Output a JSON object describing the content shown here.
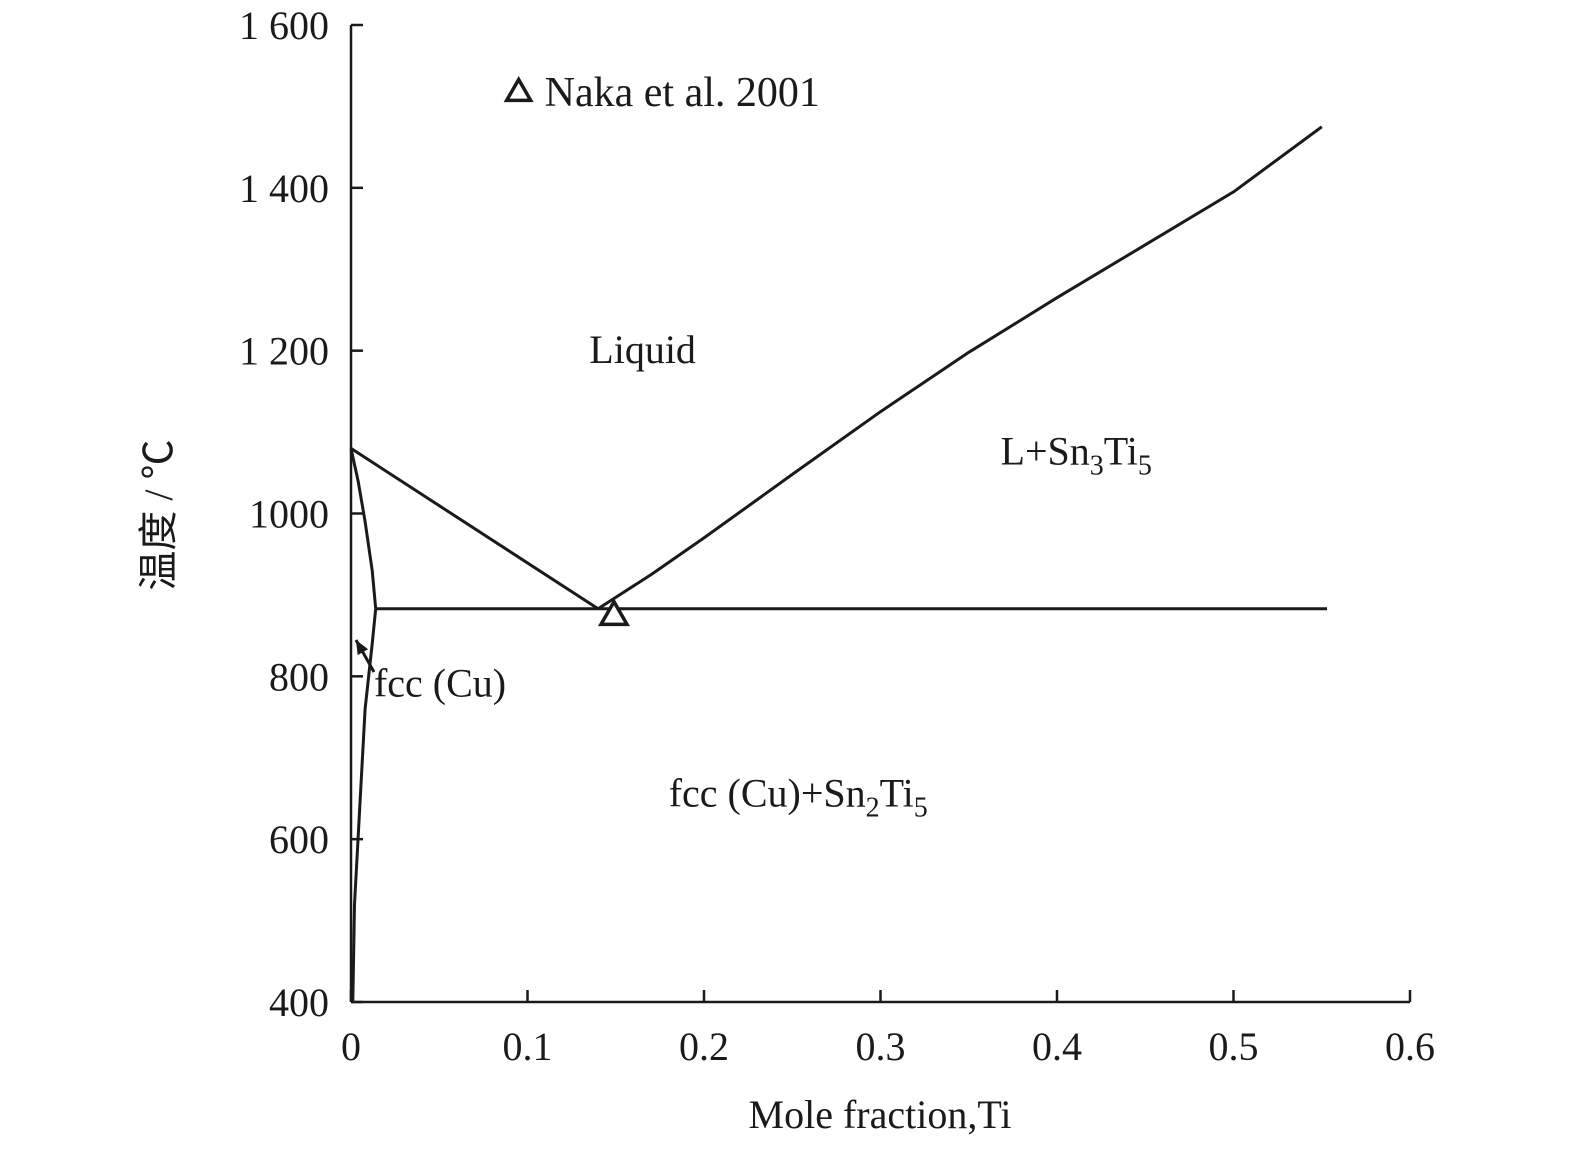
{
  "chart_data": {
    "type": "line",
    "xlabel": "Mole fraction,Ti",
    "ylabel": "温度 / ℃",
    "xlim": [
      0,
      0.6
    ],
    "ylim": [
      400,
      1600
    ],
    "x_ticks": [
      {
        "value": 0,
        "label": "0"
      },
      {
        "value": 0.1,
        "label": "0.1"
      },
      {
        "value": 0.2,
        "label": "0.2"
      },
      {
        "value": 0.3,
        "label": "0.3"
      },
      {
        "value": 0.4,
        "label": "0.4"
      },
      {
        "value": 0.5,
        "label": "0.5"
      },
      {
        "value": 0.6,
        "label": "0.6"
      }
    ],
    "y_ticks": [
      {
        "value": 400,
        "label": "400"
      },
      {
        "value": 600,
        "label": "600"
      },
      {
        "value": 800,
        "label": "800"
      },
      {
        "value": 1000,
        "label": "1000"
      },
      {
        "value": 1200,
        "label": "1 200"
      },
      {
        "value": 1400,
        "label": "1 400"
      },
      {
        "value": 1600,
        "label": "1 600"
      }
    ],
    "grid": false,
    "lines": [
      {
        "points": [
          [
            0,
            1080
          ],
          [
            0.14,
            883
          ]
        ]
      },
      {
        "points": [
          [
            0.14,
            883
          ],
          [
            0.17,
            925
          ],
          [
            0.2,
            970
          ],
          [
            0.25,
            1048
          ],
          [
            0.3,
            1125
          ],
          [
            0.35,
            1198
          ],
          [
            0.4,
            1265
          ],
          [
            0.45,
            1330
          ],
          [
            0.5,
            1395
          ],
          [
            0.55,
            1475
          ]
        ]
      },
      {
        "points": [
          [
            0.014,
            883
          ],
          [
            0.553,
            883
          ]
        ]
      },
      {
        "points": [
          [
            0,
            1080
          ],
          [
            0.004,
            1040
          ],
          [
            0.008,
            990
          ],
          [
            0.012,
            930
          ],
          [
            0.014,
            883
          ]
        ]
      },
      {
        "points": [
          [
            0.014,
            883
          ],
          [
            0.012,
            840
          ],
          [
            0.008,
            760
          ],
          [
            0.005,
            640
          ],
          [
            0.002,
            520
          ],
          [
            0.001,
            400
          ]
        ]
      }
    ],
    "markers": [
      {
        "name": "Naka et al. 2001",
        "symbol": "triangle-open",
        "x": 0.149,
        "y": 875
      }
    ],
    "legend": {
      "position": "top-left",
      "entries": [
        "Naka et al. 2001"
      ]
    },
    "region_labels": {
      "liquid": "Liquid",
      "l_sn3ti5": {
        "main": "L+Sn",
        "sub1": "3",
        "mid": "Ti",
        "sub2": "5"
      },
      "fcc_cu": "fcc (Cu)",
      "fcc_sn2ti5": {
        "main": "fcc (Cu)+Sn",
        "sub1": "2",
        "mid": "Ti",
        "sub2": "5"
      }
    }
  }
}
